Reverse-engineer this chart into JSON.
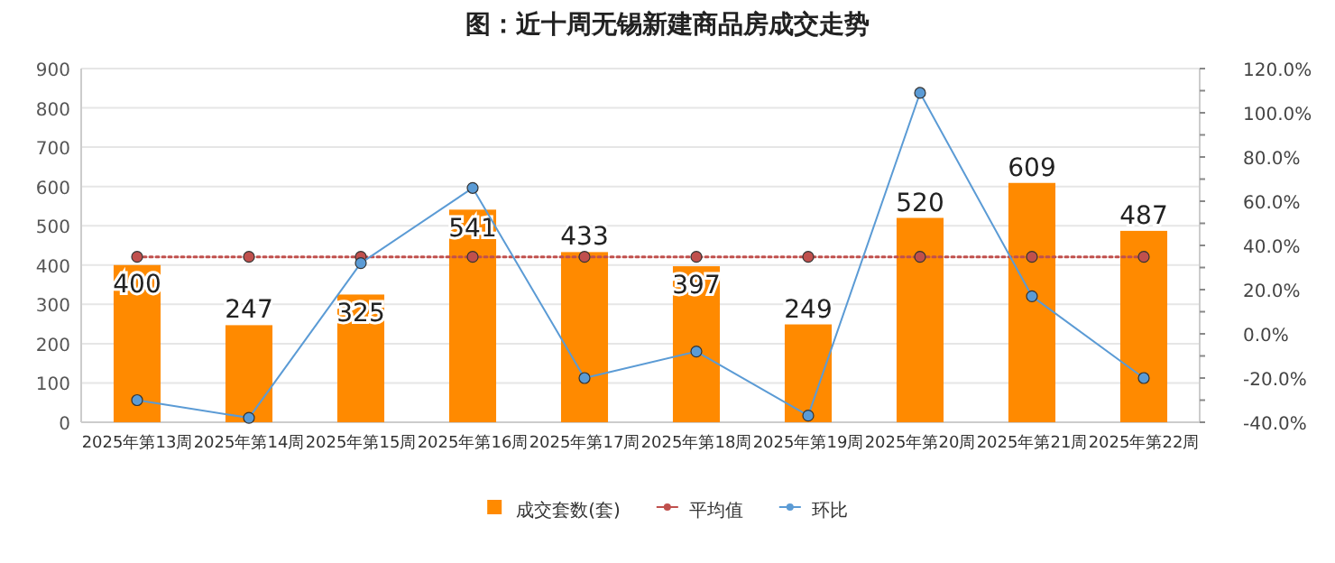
{
  "chart_data": {
    "type": "bar",
    "title": "图：近十周无锡新建商品房成交走势",
    "categories": [
      "2025年第13周",
      "2025年第14周",
      "2025年第15周",
      "2025年第16周",
      "2025年第17周",
      "2025年第18周",
      "2025年第19周",
      "2025年第20周",
      "2025年第21周",
      "2025年第22周"
    ],
    "series": [
      {
        "name": "成交套数(套)",
        "color": "#ff8a00",
        "values": [
          400,
          247,
          325,
          541,
          433,
          397,
          249,
          520,
          609,
          487
        ],
        "value_labels": [
          "400",
          "247",
          "325",
          "541",
          "433",
          "397",
          "249",
          "520",
          "609",
          "487"
        ]
      },
      {
        "name": "平均值",
        "type": "line",
        "color": "#c0504d",
        "line_style": "dotted",
        "marker": "circle",
        "values": [
          421,
          421,
          421,
          421,
          421,
          421,
          421,
          421,
          421,
          421
        ]
      },
      {
        "name": "环比",
        "type": "line",
        "color": "#5b9bd5",
        "line_style": "solid",
        "marker": "circle",
        "axis": "y2",
        "values": [
          -30,
          -38,
          32,
          66,
          -20,
          -8,
          -37,
          109,
          17,
          -20
        ]
      }
    ],
    "ylim": [
      0,
      900
    ],
    "yticks": [
      0,
      100,
      200,
      300,
      400,
      500,
      600,
      700,
      800,
      900
    ],
    "y2lim": [
      -40,
      120
    ],
    "y2ticks": [
      {
        "value": -40,
        "label": "-40.0%"
      },
      {
        "value": -30,
        "label": null
      },
      {
        "value": -20,
        "label": "-20.0%"
      },
      {
        "value": -10,
        "label": null
      },
      {
        "value": 0,
        "label": "0.0%"
      },
      {
        "value": 10,
        "label": null
      },
      {
        "value": 20,
        "label": "20.0%"
      },
      {
        "value": 30,
        "label": null
      },
      {
        "value": 40,
        "label": "40.0%"
      },
      {
        "value": 50,
        "label": null
      },
      {
        "value": 60,
        "label": "60.0%"
      },
      {
        "value": 70,
        "label": null
      },
      {
        "value": 80,
        "label": "80.0%"
      },
      {
        "value": 90,
        "label": null
      },
      {
        "value": 100,
        "label": "100.0%"
      },
      {
        "value": 110,
        "label": null
      },
      {
        "value": 120,
        "label": "120.0%"
      }
    ],
    "grid": "y",
    "legend": "bottom"
  }
}
